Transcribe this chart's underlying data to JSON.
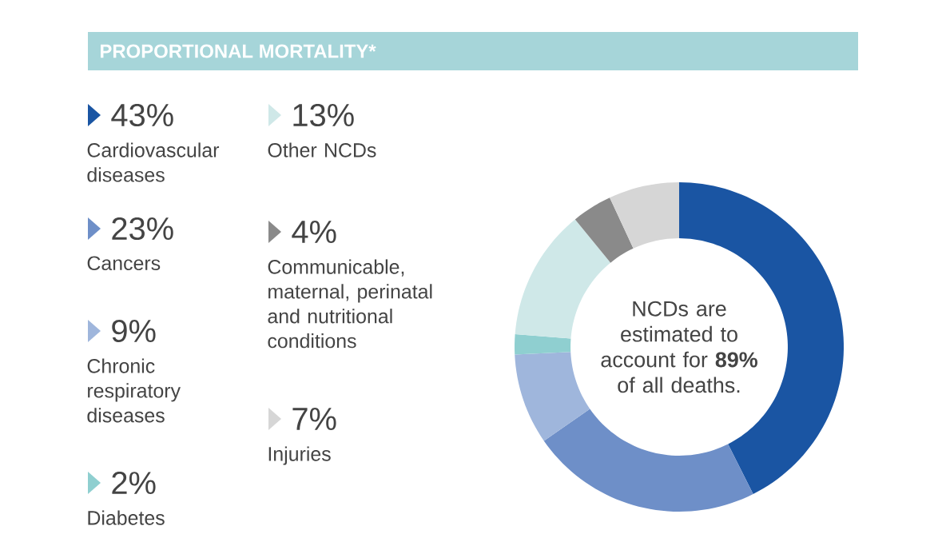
{
  "chart_data": {
    "type": "donut",
    "title": "PROPORTIONAL MORTALITY*",
    "categories": [
      "Cardiovascular diseases",
      "Cancers",
      "Chronic respiratory diseases",
      "Diabetes",
      "Other NCDs",
      "Communicable, maternal, perinatal and nutritional conditions",
      "Injuries"
    ],
    "values": [
      43,
      23,
      9,
      2,
      13,
      4,
      7
    ],
    "value_labels": [
      "43%",
      "23%",
      "9%",
      "2%",
      "13%",
      "4%",
      "7%"
    ],
    "colors": [
      "#1a55a3",
      "#6e8fc8",
      "#9fb6dc",
      "#8fcfd0",
      "#cfe8e8",
      "#8a8a8a",
      "#d6d6d6"
    ],
    "legend": "left",
    "annotations": [
      "NCDs are estimated to account for **89%** of all deaths."
    ]
  }
}
